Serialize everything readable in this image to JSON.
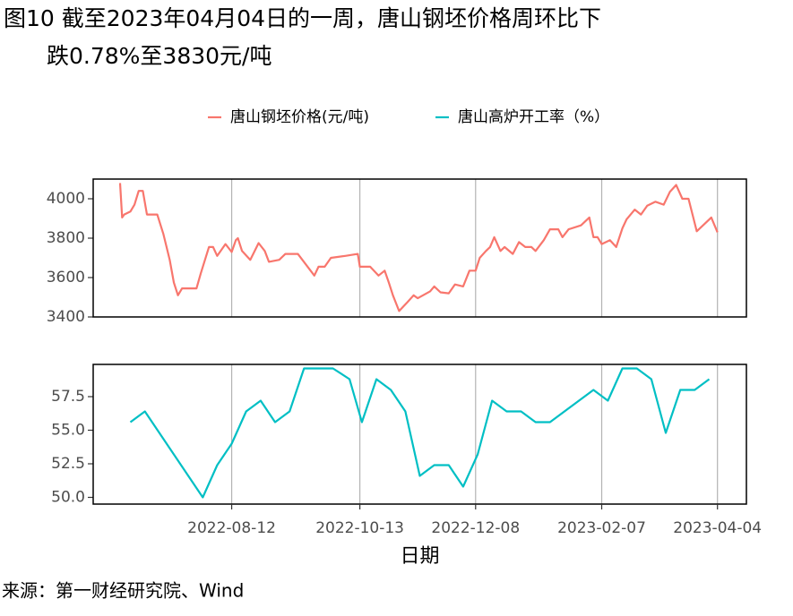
{
  "title": [
    "图10  截至2023年04月04日的一周，唐山钢坯价格周环比下",
    "跌0.78%至3830元/吨"
  ],
  "source": "来源：第一财经研究院、Wind",
  "chart_data": [
    {
      "type": "line",
      "xlim": [
        "2022-06-06",
        "2023-04-18"
      ],
      "xticks": [
        "2022-08-12",
        "2022-10-13",
        "2022-12-08",
        "2023-02-07",
        "2023-04-04"
      ],
      "ylim": [
        3400,
        4100
      ],
      "yticks": [
        3400,
        3600,
        3800,
        4000
      ],
      "grid": true,
      "x": [
        "2022-06-19",
        "2022-06-20",
        "2022-06-21",
        "2022-06-24",
        "2022-06-26",
        "2022-06-28",
        "2022-06-30",
        "2022-07-02",
        "2022-07-07",
        "2022-07-10",
        "2022-07-13",
        "2022-07-15",
        "2022-07-17",
        "2022-07-19",
        "2022-07-26",
        "2022-07-28",
        "2022-08-01",
        "2022-08-03",
        "2022-08-05",
        "2022-08-09",
        "2022-08-12",
        "2022-08-14",
        "2022-08-15",
        "2022-08-17",
        "2022-08-21",
        "2022-08-25",
        "2022-08-28",
        "2022-08-30",
        "2022-09-04",
        "2022-09-07",
        "2022-09-13",
        "2022-09-17",
        "2022-09-21",
        "2022-09-23",
        "2022-09-26",
        "2022-09-29",
        "2022-10-06",
        "2022-10-12",
        "2022-10-13",
        "2022-10-18",
        "2022-10-22",
        "2022-10-25",
        "2022-10-27",
        "2022-10-29",
        "2022-11-01",
        "2022-11-05",
        "2022-11-08",
        "2022-11-10",
        "2022-11-16",
        "2022-11-18",
        "2022-11-21",
        "2022-11-25",
        "2022-11-28",
        "2022-12-02",
        "2022-12-05",
        "2022-12-08",
        "2022-12-10",
        "2022-12-13",
        "2022-12-15",
        "2022-12-17",
        "2022-12-20",
        "2022-12-22",
        "2022-12-26",
        "2022-12-29",
        "2023-01-01",
        "2023-01-04",
        "2023-01-06",
        "2023-01-10",
        "2023-01-13",
        "2023-01-17",
        "2023-01-19",
        "2023-01-22",
        "2023-01-28",
        "2023-02-01",
        "2023-02-03",
        "2023-02-05",
        "2023-02-07",
        "2023-02-11",
        "2023-02-14",
        "2023-02-17",
        "2023-02-19",
        "2023-02-23",
        "2023-02-26",
        "2023-03-01",
        "2023-03-05",
        "2023-03-09",
        "2023-03-12",
        "2023-03-15",
        "2023-03-18",
        "2023-03-21",
        "2023-03-25",
        "2023-03-28",
        "2023-04-01",
        "2023-04-04"
      ],
      "series": [
        {
          "name": "唐山钢坯价格(元/吨)",
          "color": "#F8766D",
          "values": [
            4080,
            3905,
            3920,
            3935,
            3970,
            4040,
            4040,
            3920,
            3920,
            3820,
            3690,
            3575,
            3510,
            3545,
            3545,
            3620,
            3755,
            3755,
            3710,
            3770,
            3730,
            3790,
            3800,
            3735,
            3690,
            3775,
            3735,
            3680,
            3690,
            3720,
            3720,
            3665,
            3610,
            3655,
            3655,
            3700,
            3710,
            3720,
            3655,
            3655,
            3610,
            3635,
            3575,
            3510,
            3430,
            3475,
            3510,
            3495,
            3530,
            3555,
            3525,
            3520,
            3565,
            3555,
            3635,
            3635,
            3700,
            3735,
            3755,
            3805,
            3735,
            3755,
            3720,
            3780,
            3755,
            3755,
            3735,
            3790,
            3845,
            3845,
            3805,
            3845,
            3865,
            3905,
            3805,
            3805,
            3770,
            3790,
            3755,
            3850,
            3895,
            3945,
            3920,
            3965,
            3985,
            3970,
            4035,
            4070,
            4000,
            4000,
            3835,
            3865,
            3905,
            3830
          ]
        }
      ]
    },
    {
      "type": "line",
      "xlim": [
        "2022-06-06",
        "2023-04-18"
      ],
      "xticks": [
        "2022-08-12",
        "2022-10-13",
        "2022-12-08",
        "2023-02-07",
        "2023-04-04"
      ],
      "x_label": "日期",
      "ylim": [
        49.5,
        59.9
      ],
      "yticks": [
        {
          "value": 50,
          "label": "50.0"
        },
        52.5,
        {
          "value": 55,
          "label": "55.0"
        },
        57.5
      ],
      "grid": true,
      "x": [
        "2022-06-24",
        "2022-07-01",
        "2022-07-29",
        "2022-08-05",
        "2022-08-12",
        "2022-08-19",
        "2022-08-26",
        "2022-09-02",
        "2022-09-09",
        "2022-09-16",
        "2022-09-30",
        "2022-10-08",
        "2022-10-14",
        "2022-10-21",
        "2022-10-28",
        "2022-11-04",
        "2022-11-11",
        "2022-11-18",
        "2022-11-25",
        "2022-12-02",
        "2022-12-09",
        "2022-12-16",
        "2022-12-23",
        "2022-12-30",
        "2023-01-06",
        "2023-01-13",
        "2023-02-03",
        "2023-02-10",
        "2023-02-17",
        "2023-02-24",
        "2023-03-03",
        "2023-03-10",
        "2023-03-17",
        "2023-03-24",
        "2023-03-31"
      ],
      "series": [
        {
          "name": "唐山高炉开工率（%）",
          "color": "#00BFC4",
          "values": [
            55.6,
            56.4,
            50.0,
            52.4,
            54.0,
            56.4,
            57.2,
            55.6,
            56.4,
            59.6,
            59.6,
            58.8,
            55.6,
            58.8,
            58.0,
            56.4,
            51.6,
            52.4,
            52.4,
            50.8,
            53.2,
            57.2,
            56.4,
            56.4,
            55.6,
            55.6,
            58.0,
            57.2,
            59.6,
            59.6,
            58.8,
            54.8,
            58.0,
            58.0,
            58.8
          ]
        }
      ]
    }
  ]
}
